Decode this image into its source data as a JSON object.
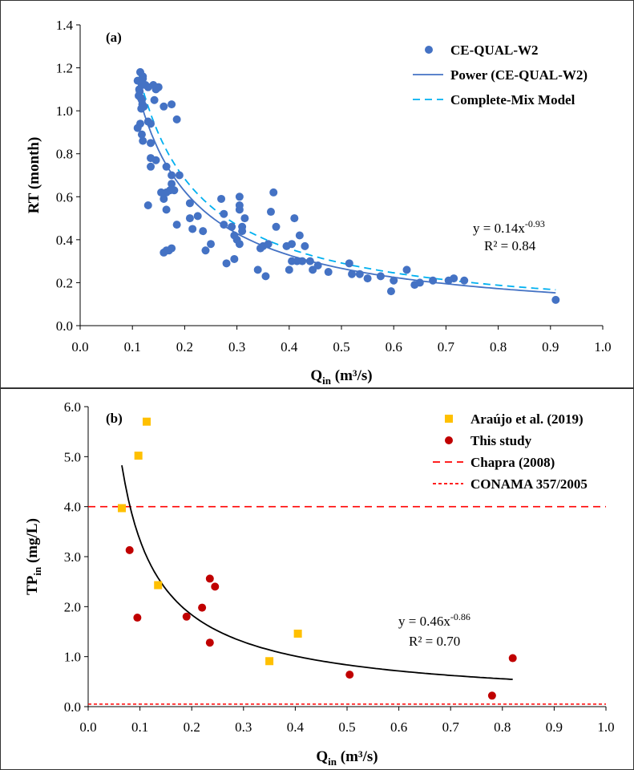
{
  "chart_data": [
    {
      "type": "scatter",
      "panel_label": "(a)",
      "xlabel": "Q",
      "xlabel_sub": "in",
      "xlabel_unit": " (m³/s)",
      "ylabel": "RT (month)",
      "xlim": [
        0.0,
        1.0
      ],
      "ylim": [
        0.0,
        1.4
      ],
      "x_ticks": [
        "0.0",
        "0.1",
        "0.2",
        "0.3",
        "0.4",
        "0.5",
        "0.6",
        "0.7",
        "0.8",
        "0.9",
        "1.0"
      ],
      "y_ticks": [
        "0.0",
        "0.2",
        "0.4",
        "0.6",
        "0.8",
        "1.0",
        "1.2",
        "1.4"
      ],
      "legend_position": "top-right",
      "grid": false,
      "series": [
        {
          "name": "CE-QUAL-W2",
          "kind": "scatter",
          "marker": "circle",
          "color": "#4472C4",
          "points": [
            [
              0.11,
              1.14
            ],
            [
              0.115,
              1.18
            ],
            [
              0.12,
              1.15
            ],
            [
              0.118,
              1.12
            ],
            [
              0.113,
              1.1
            ],
            [
              0.125,
              1.12
            ],
            [
              0.13,
              1.11
            ],
            [
              0.12,
              1.16
            ],
            [
              0.114,
              1.09
            ],
            [
              0.112,
              1.07
            ],
            [
              0.116,
              1.06
            ],
            [
              0.118,
              1.05
            ],
            [
              0.122,
              1.02
            ],
            [
              0.119,
              1.03
            ],
            [
              0.117,
              1.01
            ],
            [
              0.14,
              1.12
            ],
            [
              0.145,
              1.1
            ],
            [
              0.15,
              1.11
            ],
            [
              0.142,
              1.05
            ],
            [
              0.16,
              1.02
            ],
            [
              0.175,
              1.03
            ],
            [
              0.185,
              0.96
            ],
            [
              0.13,
              0.95
            ],
            [
              0.135,
              0.94
            ],
            [
              0.11,
              0.92
            ],
            [
              0.115,
              0.94
            ],
            [
              0.118,
              0.89
            ],
            [
              0.12,
              0.86
            ],
            [
              0.135,
              0.85
            ],
            [
              0.135,
              0.78
            ],
            [
              0.145,
              0.77
            ],
            [
              0.135,
              0.74
            ],
            [
              0.165,
              0.74
            ],
            [
              0.175,
              0.7
            ],
            [
              0.19,
              0.7
            ],
            [
              0.175,
              0.66
            ],
            [
              0.172,
              0.63
            ],
            [
              0.165,
              0.62
            ],
            [
              0.155,
              0.62
            ],
            [
              0.18,
              0.63
            ],
            [
              0.16,
              0.59
            ],
            [
              0.21,
              0.57
            ],
            [
              0.165,
              0.54
            ],
            [
              0.13,
              0.56
            ],
            [
              0.21,
              0.5
            ],
            [
              0.225,
              0.51
            ],
            [
              0.185,
              0.47
            ],
            [
              0.215,
              0.45
            ],
            [
              0.235,
              0.44
            ],
            [
              0.25,
              0.38
            ],
            [
              0.24,
              0.35
            ],
            [
              0.16,
              0.34
            ],
            [
              0.165,
              0.35
            ],
            [
              0.17,
              0.35
            ],
            [
              0.175,
              0.36
            ],
            [
              0.27,
              0.59
            ],
            [
              0.275,
              0.52
            ],
            [
              0.29,
              0.46
            ],
            [
              0.275,
              0.47
            ],
            [
              0.28,
              0.29
            ],
            [
              0.295,
              0.31
            ],
            [
              0.295,
              0.42
            ],
            [
              0.3,
              0.4
            ],
            [
              0.305,
              0.56
            ],
            [
              0.305,
              0.6
            ],
            [
              0.305,
              0.54
            ],
            [
              0.31,
              0.46
            ],
            [
              0.315,
              0.5
            ],
            [
              0.31,
              0.44
            ],
            [
              0.305,
              0.38
            ],
            [
              0.345,
              0.36
            ],
            [
              0.34,
              0.26
            ],
            [
              0.355,
              0.23
            ],
            [
              0.35,
              0.37
            ],
            [
              0.36,
              0.38
            ],
            [
              0.365,
              0.53
            ],
            [
              0.37,
              0.62
            ],
            [
              0.375,
              0.46
            ],
            [
              0.395,
              0.37
            ],
            [
              0.4,
              0.26
            ],
            [
              0.405,
              0.3
            ],
            [
              0.405,
              0.38
            ],
            [
              0.41,
              0.5
            ],
            [
              0.415,
              0.3
            ],
            [
              0.42,
              0.42
            ],
            [
              0.425,
              0.3
            ],
            [
              0.43,
              0.37
            ],
            [
              0.44,
              0.3
            ],
            [
              0.445,
              0.26
            ],
            [
              0.455,
              0.28
            ],
            [
              0.475,
              0.25
            ],
            [
              0.515,
              0.29
            ],
            [
              0.52,
              0.24
            ],
            [
              0.535,
              0.24
            ],
            [
              0.55,
              0.22
            ],
            [
              0.575,
              0.23
            ],
            [
              0.595,
              0.16
            ],
            [
              0.6,
              0.21
            ],
            [
              0.625,
              0.26
            ],
            [
              0.64,
              0.19
            ],
            [
              0.65,
              0.2
            ],
            [
              0.675,
              0.21
            ],
            [
              0.705,
              0.21
            ],
            [
              0.715,
              0.22
            ],
            [
              0.735,
              0.21
            ],
            [
              0.91,
              0.12
            ]
          ]
        },
        {
          "name": "Power  (CE-QUAL-W2)",
          "kind": "power_fit",
          "coef": 0.14,
          "exp": -0.93,
          "x_range": [
            0.11,
            0.91
          ],
          "color": "#4472C4",
          "dash": "solid"
        },
        {
          "name": "Complete-Mix Model",
          "kind": "power_fit",
          "coef": 0.153,
          "exp": -0.93,
          "x_range": [
            0.11,
            0.91
          ],
          "color": "#00B0F0",
          "dash": "dashed"
        }
      ],
      "equation": "y = 0.14x",
      "equation_exp": "-0.93",
      "r2_label": "R",
      "r2_value": "² = 0.84"
    },
    {
      "type": "scatter",
      "panel_label": "(b)",
      "xlabel": "Q",
      "xlabel_sub": "in",
      "xlabel_unit": " (m³/s)",
      "ylabel": "TP",
      "ylabel_sub": "in",
      "ylabel_unit": "  (mg/L)",
      "xlim": [
        0.0,
        1.0
      ],
      "ylim": [
        0.0,
        6.0
      ],
      "x_ticks": [
        "0.0",
        "0.1",
        "0.2",
        "0.3",
        "0.4",
        "0.5",
        "0.6",
        "0.7",
        "0.8",
        "0.9",
        "1.0"
      ],
      "y_ticks": [
        "0.0",
        "1.0",
        "2.0",
        "3.0",
        "4.0",
        "5.0",
        "6.0"
      ],
      "legend_position": "top-right",
      "grid": false,
      "series": [
        {
          "name": "Araújo et al. (2019)",
          "kind": "scatter",
          "marker": "square",
          "color": "#FFC000",
          "points": [
            [
              0.065,
              3.97
            ],
            [
              0.097,
              5.02
            ],
            [
              0.113,
              5.7
            ],
            [
              0.135,
              2.43
            ],
            [
              0.35,
              0.91
            ],
            [
              0.405,
              1.46
            ]
          ]
        },
        {
          "name": "This study",
          "kind": "scatter",
          "marker": "circle",
          "color": "#C00000",
          "points": [
            [
              0.08,
              3.13
            ],
            [
              0.095,
              1.78
            ],
            [
              0.19,
              1.8
            ],
            [
              0.22,
              1.98
            ],
            [
              0.235,
              2.56
            ],
            [
              0.245,
              2.4
            ],
            [
              0.235,
              1.28
            ],
            [
              0.505,
              0.64
            ],
            [
              0.78,
              0.22
            ],
            [
              0.82,
              0.97
            ]
          ]
        },
        {
          "name": "Chapra (2008)",
          "kind": "hline",
          "y": 4.0,
          "color": "#FF0000",
          "dash": "dashed"
        },
        {
          "name": "CONAMA 357/2005",
          "kind": "hline",
          "y": 0.05,
          "color": "#FF0000",
          "dash": "dotted"
        },
        {
          "name": "",
          "kind": "power_fit",
          "coef": 0.46,
          "exp": -0.86,
          "x_range": [
            0.065,
            0.82
          ],
          "color": "#000000",
          "dash": "solid"
        }
      ],
      "equation": "y = 0.46x",
      "equation_exp": "-0.86",
      "r2_label": "R",
      "r2_value": "² = 0.70"
    }
  ]
}
